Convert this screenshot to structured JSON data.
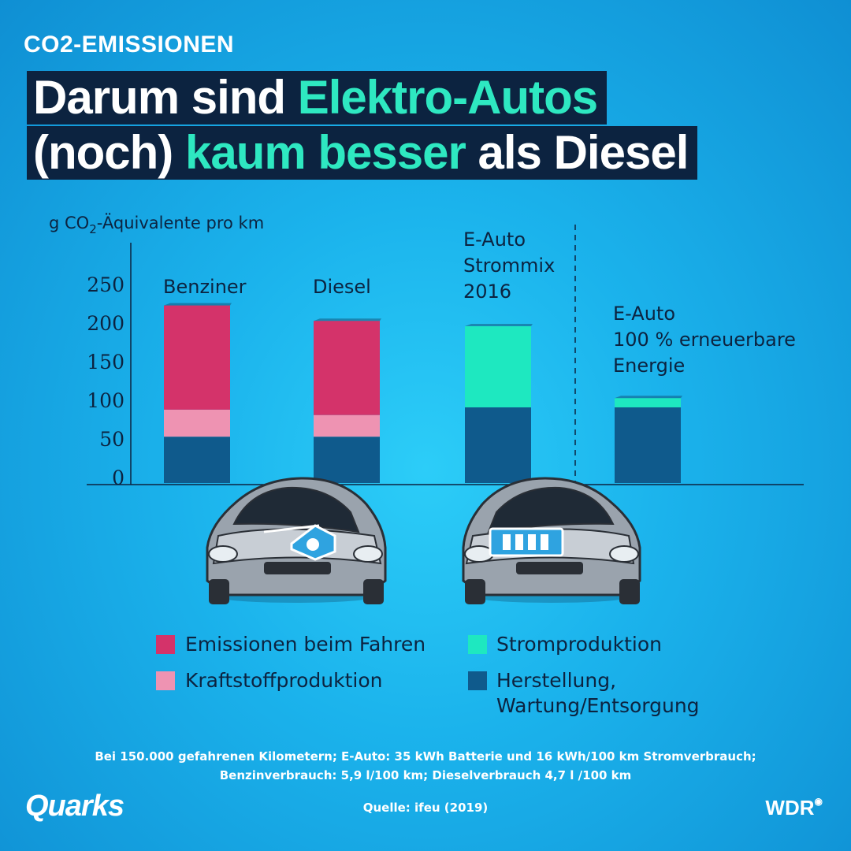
{
  "kicker": "CO2-EMISSIONEN",
  "headline": {
    "line1_a": "Darum sind ",
    "line1_b": "Elektro-Autos",
    "line2_a": "(noch) ",
    "line2_b": "kaum besser",
    "line2_c": " als Diesel"
  },
  "colors": {
    "emissionen": "#d4336a",
    "kraftstoff": "#ee93b2",
    "strom": "#1ee8c0",
    "herstellung": "#0f5a8c",
    "headline_bg": "#0c2340",
    "accent": "#2ee8c1"
  },
  "chart_data": {
    "type": "bar",
    "stacked": true,
    "ylabel": "g CO2-Äquivalente pro km",
    "ylim": [
      0,
      260
    ],
    "yticks": [
      0,
      50,
      100,
      150,
      200,
      250
    ],
    "categories": [
      [
        "Benziner"
      ],
      [
        "Diesel"
      ],
      [
        "E-Auto",
        "Strommix",
        "2016"
      ],
      [
        "E-Auto",
        "100 % erneuerbare",
        "Energie"
      ]
    ],
    "series": [
      {
        "name": "Herstellung, Wartung/Entsorgung",
        "key": "herstellung",
        "values": [
          60,
          60,
          98,
          98
        ]
      },
      {
        "name": "Kraftstoffproduktion",
        "key": "kraftstoff",
        "values": [
          35,
          28,
          0,
          0
        ]
      },
      {
        "name": "Stromproduktion",
        "key": "strom",
        "values": [
          0,
          0,
          105,
          12
        ]
      },
      {
        "name": "Emissionen beim Fahren",
        "key": "emissionen",
        "values": [
          135,
          122,
          0,
          0
        ]
      }
    ]
  },
  "legend": {
    "emissionen": "Emissionen beim Fahren",
    "kraftstoff": "Kraftstoffproduktion",
    "strom": "Stromproduktion",
    "herstellung_1": "Herstellung,",
    "herstellung_2": "Wartung/Entsorgung"
  },
  "footnote": {
    "line1": "Bei 150.000 gefahrenen Kilometern; E-Auto: 35 kWh Batterie und 16 kWh/100 km Stromverbrauch;",
    "line2": "Benzinverbrauch: 5,9 l/100 km; Dieselverbrauch 4,7 l /100 km"
  },
  "source": "Quelle: ifeu (2019)",
  "logos": {
    "left": "Quarks",
    "right": "WDR"
  }
}
